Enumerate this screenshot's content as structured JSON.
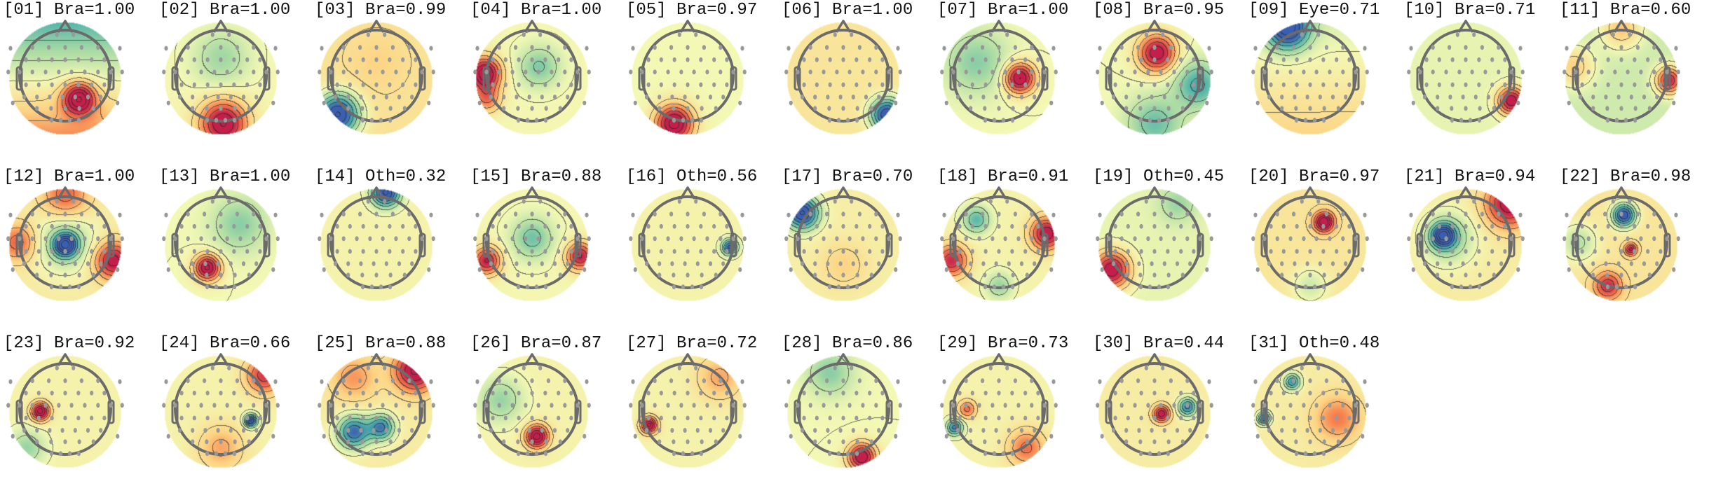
{
  "chart_data": {
    "type": "heatmap",
    "subtype": "scalp-topomap-grid",
    "colormap": {
      "-1": "#3b5fb0",
      "-0.6": "#4fb3aa",
      "-0.3": "#a9dba4",
      "0": "#f3f8b4",
      "0.3": "#fdd382",
      "0.6": "#f57a4b",
      "1": "#c41e4a"
    },
    "outline_color": "#6b6b6b",
    "sensor_color": "#999999",
    "panels": [
      {
        "title": "[01] Bra=1.00",
        "field": {
          "base": -0.05,
          "tilt": [
            0,
            -0.45
          ],
          "sources": [
            [
              0.3,
              -0.5,
              0.35,
              1.25
            ]
          ]
        }
      },
      {
        "title": "[02] Bra=1.00",
        "field": {
          "base": 0.02,
          "tilt": [
            0,
            0
          ],
          "sources": [
            [
              0,
              0.4,
              0.6,
              -0.35
            ],
            [
              0.05,
              -1.05,
              0.5,
              1.2
            ]
          ]
        }
      },
      {
        "title": "[03] Bra=0.99",
        "field": {
          "base": 0.18,
          "tilt": [
            0,
            0
          ],
          "sources": [
            [
              -0.85,
              -0.85,
              0.45,
              -1.4
            ],
            [
              0,
              0.3,
              0.6,
              0.1
            ]
          ]
        }
      },
      {
        "title": "[04] Bra=1.00",
        "field": {
          "base": 0.02,
          "tilt": [
            0,
            0
          ],
          "sources": [
            [
              -1.05,
              0.05,
              0.35,
              1.3
            ],
            [
              -1.0,
              -0.5,
              0.3,
              0.6
            ],
            [
              0.15,
              0.2,
              0.45,
              -0.45
            ]
          ]
        }
      },
      {
        "title": "[05] Bra=0.97",
        "field": {
          "base": 0.0,
          "tilt": [
            0,
            0
          ],
          "sources": [
            [
              -0.3,
              -1.05,
              0.4,
              1.3
            ]
          ]
        }
      },
      {
        "title": "[06] Bra=1.00",
        "field": {
          "base": 0.15,
          "tilt": [
            0,
            0
          ],
          "sources": [
            [
              0.95,
              -0.85,
              0.35,
              -1.3
            ]
          ]
        }
      },
      {
        "title": "[07] Bra=1.00",
        "field": {
          "base": 0.0,
          "tilt": [
            0,
            0
          ],
          "sources": [
            [
              -0.5,
              0.3,
              0.7,
              -0.4
            ],
            [
              0.45,
              -0.05,
              0.33,
              1.25
            ]
          ]
        }
      },
      {
        "title": "[08] Bra=0.95",
        "field": {
          "base": 0.0,
          "tilt": [
            0,
            0
          ],
          "sources": [
            [
              0.05,
              0.5,
              0.4,
              1.15
            ],
            [
              0.95,
              -0.2,
              0.5,
              -0.65
            ],
            [
              0,
              -1.05,
              0.6,
              -0.5
            ]
          ]
        }
      },
      {
        "title": "[09] Eye=0.71",
        "field": {
          "base": 0.08,
          "tilt": [
            0,
            -0.15
          ],
          "sources": [
            [
              -0.5,
              1.05,
              0.45,
              -1.3
            ]
          ]
        }
      },
      {
        "title": "[10] Bra=0.71",
        "field": {
          "base": -0.05,
          "tilt": [
            0,
            0
          ],
          "sources": [
            [
              1.0,
              -0.55,
              0.3,
              1.2
            ]
          ]
        }
      },
      {
        "title": "[11] Bra=0.60",
        "field": {
          "base": -0.15,
          "tilt": [
            0,
            0
          ],
          "sources": [
            [
              1.05,
              -0.1,
              0.3,
              1.1
            ],
            [
              0,
              1.05,
              0.45,
              0.5
            ],
            [
              -1.05,
              0.2,
              0.45,
              0.45
            ]
          ]
        }
      },
      {
        "title": "[12] Bra=1.00",
        "field": {
          "base": 0.1,
          "tilt": [
            0,
            0
          ],
          "sources": [
            [
              0,
              -0.05,
              0.25,
              -1.2
            ],
            [
              0,
              0,
              0.6,
              -0.45
            ],
            [
              1.05,
              -0.4,
              0.4,
              1.0
            ],
            [
              -1.05,
              0,
              0.4,
              0.6
            ],
            [
              0,
              1.05,
              0.5,
              0.6
            ]
          ]
        }
      },
      {
        "title": "[13] Bra=1.00",
        "field": {
          "base": 0.0,
          "tilt": [
            0,
            0
          ],
          "sources": [
            [
              -0.3,
              -0.55,
              0.28,
              1.25
            ],
            [
              0.4,
              0.4,
              0.6,
              -0.4
            ]
          ]
        }
      },
      {
        "title": "[14] Oth=0.32",
        "field": {
          "base": 0.05,
          "tilt": [
            0,
            0
          ],
          "sources": [
            [
              0.2,
              1.1,
              0.3,
              -1.3
            ]
          ]
        }
      },
      {
        "title": "[15] Bra=0.88",
        "field": {
          "base": 0.02,
          "tilt": [
            0,
            0
          ],
          "sources": [
            [
              0,
              0.1,
              0.45,
              -0.5
            ],
            [
              1.05,
              -0.3,
              0.3,
              1.0
            ],
            [
              -1.0,
              -0.4,
              0.3,
              1.0
            ]
          ]
        }
      },
      {
        "title": "[16] Oth=0.56",
        "field": {
          "base": 0.05,
          "tilt": [
            0,
            0
          ],
          "sources": [
            [
              0.92,
              -0.1,
              0.17,
              -1.1
            ]
          ]
        }
      },
      {
        "title": "[17] Bra=0.70",
        "field": {
          "base": 0.08,
          "tilt": [
            0,
            0
          ],
          "sources": [
            [
              -0.9,
              0.65,
              0.35,
              -1.3
            ],
            [
              0,
              -0.5,
              0.5,
              0.2
            ]
          ]
        }
      },
      {
        "title": "[18] Bra=0.91",
        "field": {
          "base": 0.05,
          "tilt": [
            0,
            0
          ],
          "sources": [
            [
              -0.5,
              0.5,
              0.3,
              -0.6
            ],
            [
              1.05,
              0.2,
              0.35,
              1.1
            ],
            [
              -1.05,
              -0.4,
              0.35,
              0.9
            ],
            [
              0,
              -0.95,
              0.3,
              -0.4
            ]
          ]
        }
      },
      {
        "title": "[19] Oth=0.45",
        "field": {
          "base": -0.05,
          "tilt": [
            0,
            0
          ],
          "sources": [
            [
              -0.95,
              -0.6,
              0.4,
              1.2
            ],
            [
              0.5,
              0.85,
              0.4,
              -0.3
            ]
          ]
        }
      },
      {
        "title": "[20] Bra=0.97",
        "field": {
          "base": 0.15,
          "tilt": [
            0,
            0
          ],
          "sources": [
            [
              0.3,
              0.45,
              0.22,
              1.25
            ],
            [
              0,
              -0.95,
              0.4,
              -0.3
            ]
          ]
        }
      },
      {
        "title": "[21] Bra=0.94",
        "field": {
          "base": 0.1,
          "tilt": [
            0,
            0
          ],
          "sources": [
            [
              -0.5,
              0.15,
              0.25,
              -1.2
            ],
            [
              -0.4,
              0.1,
              0.55,
              -0.5
            ],
            [
              0.95,
              0.85,
              0.5,
              1.05
            ]
          ]
        }
      },
      {
        "title": "[22] Bra=0.98",
        "field": {
          "base": 0.15,
          "tilt": [
            0,
            0
          ],
          "sources": [
            [
              0.05,
              0.6,
              0.25,
              -1.3
            ],
            [
              0.2,
              -0.15,
              0.14,
              0.9
            ],
            [
              -0.3,
              -0.95,
              0.3,
              0.8
            ],
            [
              -0.95,
              0,
              0.4,
              -0.4
            ]
          ]
        }
      },
      {
        "title": "[23] Bra=0.92",
        "field": {
          "base": 0.05,
          "tilt": [
            0,
            0
          ],
          "sources": [
            [
              -0.55,
              -0.05,
              0.2,
              1.25
            ],
            [
              -0.85,
              -0.85,
              0.4,
              -0.4
            ]
          ]
        }
      },
      {
        "title": "[24] Bra=0.66",
        "field": {
          "base": 0.05,
          "tilt": [
            0,
            0
          ],
          "sources": [
            [
              0.65,
              -0.25,
              0.14,
              -1.3
            ],
            [
              0.95,
              0.75,
              0.4,
              0.85
            ],
            [
              0,
              -0.85,
              0.5,
              0.4
            ]
          ]
        }
      },
      {
        "title": "[25] Bra=0.88",
        "field": {
          "base": 0.1,
          "tilt": [
            0,
            0
          ],
          "sources": [
            [
              -0.5,
              -0.5,
              0.35,
              -1.05
            ],
            [
              0.1,
              -0.4,
              0.28,
              -0.95
            ],
            [
              0.85,
              0.85,
              0.45,
              1.15
            ],
            [
              -0.5,
              0.7,
              0.5,
              0.4
            ]
          ]
        }
      },
      {
        "title": "[26] Bra=0.87",
        "field": {
          "base": 0.05,
          "tilt": [
            0,
            0
          ],
          "sources": [
            [
              0.1,
              -0.6,
              0.25,
              1.25
            ],
            [
              -0.7,
              0.2,
              0.5,
              -0.4
            ]
          ]
        }
      },
      {
        "title": "[27] Bra=0.72",
        "field": {
          "base": 0.05,
          "tilt": [
            0,
            0
          ],
          "sources": [
            [
              -0.85,
              -0.35,
              0.18,
              1.2
            ],
            [
              0.7,
              0.7,
              0.5,
              0.4
            ]
          ]
        }
      },
      {
        "title": "[28] Bra=0.86",
        "field": {
          "base": 0.0,
          "tilt": [
            0,
            0
          ],
          "sources": [
            [
              0.4,
              -1.05,
              0.3,
              1.2
            ],
            [
              -0.3,
              0.8,
              0.5,
              -0.4
            ]
          ]
        }
      },
      {
        "title": "[29] Bra=0.73",
        "field": {
          "base": 0.05,
          "tilt": [
            0,
            0
          ],
          "sources": [
            [
              -0.98,
              -0.4,
              0.18,
              -0.9
            ],
            [
              -0.7,
              0,
              0.2,
              0.6
            ],
            [
              0.6,
              -0.85,
              0.4,
              0.6
            ]
          ]
        }
      },
      {
        "title": "[30] Bra=0.44",
        "field": {
          "base": 0.1,
          "tilt": [
            0,
            0
          ],
          "sources": [
            [
              0.15,
              -0.1,
              0.18,
              1.05
            ],
            [
              0.72,
              0.05,
              0.2,
              -0.95
            ]
          ]
        }
      },
      {
        "title": "[31] Oth=0.48",
        "field": {
          "base": 0.1,
          "tilt": [
            0,
            0
          ],
          "sources": [
            [
              -0.4,
              0.6,
              0.18,
              -0.85
            ],
            [
              -1.02,
              -0.2,
              0.14,
              -1.05
            ],
            [
              0.6,
              -0.2,
              0.5,
              0.5
            ]
          ]
        }
      }
    ]
  }
}
